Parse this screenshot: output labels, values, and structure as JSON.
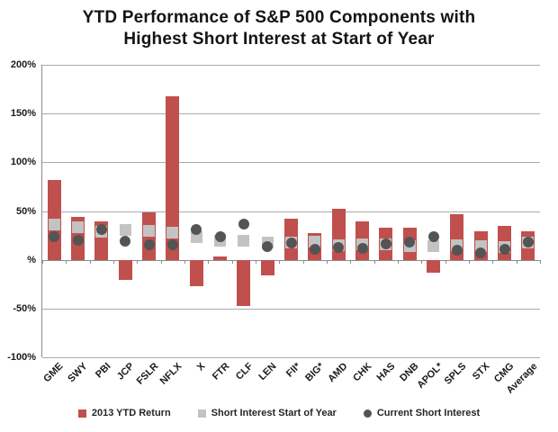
{
  "title": "YTD Performance of S&P 500 Components with Highest Short Interest at Start of Year",
  "title_lines": [
    "YTD Performance of S&P 500 Components with",
    "Highest Short Interest at Start of Year"
  ],
  "colors": {
    "bar": "#C0504D",
    "short_interest_start": "#C3C3C3",
    "current_short_interest": "#545454",
    "gridline": "#ABABAB",
    "axis_line": "#8C8C8C",
    "text": "#1A1A1A",
    "background": "#FFFFFF"
  },
  "chart_data": {
    "type": "bar",
    "title": "YTD Performance of S&P 500 Components with Highest Short Interest at Start of Year",
    "categories": [
      "GME",
      "SWY",
      "PBI",
      "JCP",
      "FSLR",
      "NFLX",
      "X",
      "FTR",
      "CLF",
      "LEN",
      "FII*",
      "BIG*",
      "AMD",
      "CHK",
      "HAS",
      "DNB",
      "APOL*",
      "SPLS",
      "STX",
      "CMG",
      "Average"
    ],
    "series": [
      {
        "name": "2013 YTD Return",
        "type": "bar",
        "marker": "red-square",
        "values": [
          82,
          44,
          39,
          -21,
          49,
          168,
          -27,
          3,
          -47,
          -16,
          42,
          27,
          52,
          39,
          33,
          33,
          -13,
          47,
          29,
          35,
          29
        ]
      },
      {
        "name": "Short Interest Start of Year",
        "type": "scatter",
        "marker": "gray-square",
        "values": [
          36,
          33,
          29,
          31,
          30,
          28,
          23,
          20,
          20,
          18,
          18,
          19,
          15,
          16,
          16,
          14,
          14,
          15,
          14,
          13,
          18
        ]
      },
      {
        "name": "Current Short Interest",
        "type": "scatter",
        "marker": "dark-circle",
        "values": [
          24,
          20,
          31,
          19,
          15,
          15,
          31,
          24,
          37,
          14,
          17,
          11,
          13,
          12,
          16,
          18,
          24,
          10,
          7,
          11,
          18
        ]
      }
    ],
    "xlabel": "",
    "ylabel": "",
    "ylim": [
      -100,
      200
    ],
    "yticks": [
      {
        "value": 200,
        "label": "200%"
      },
      {
        "value": 150,
        "label": "150%"
      },
      {
        "value": 100,
        "label": "100%"
      },
      {
        "value": 50,
        "label": "50%"
      },
      {
        "value": 0,
        "label": "%"
      },
      {
        "value": -50,
        "label": "-50%"
      },
      {
        "value": -100,
        "label": "-100%"
      }
    ],
    "grid": true,
    "legend_position": "bottom"
  }
}
